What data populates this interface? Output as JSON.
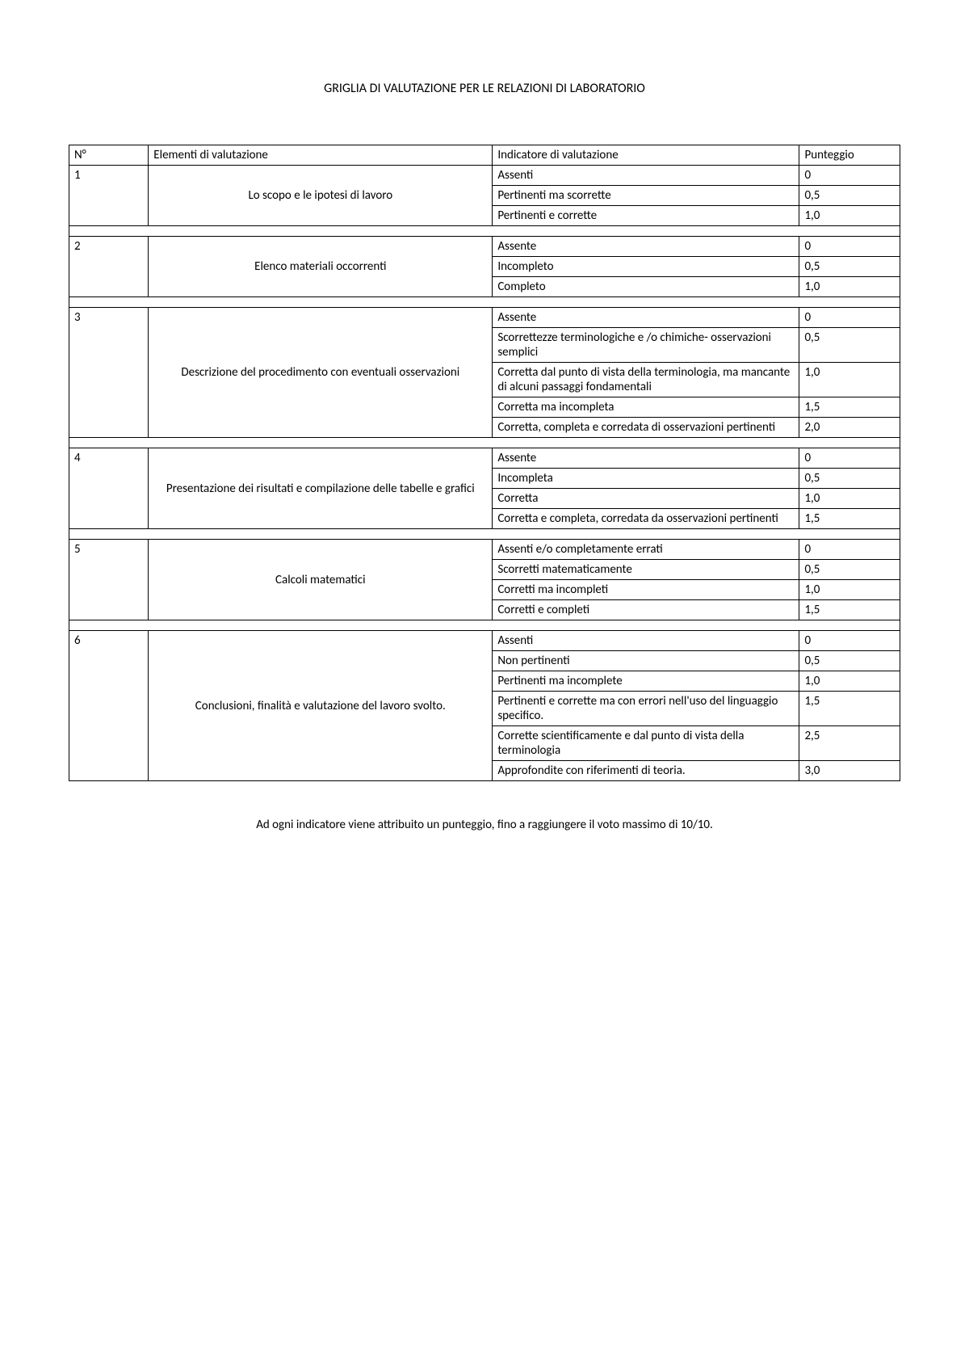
{
  "title": "GRIGLIA DI VALUTAZIONE PER LE RELAZIONI DI LABORATORIO",
  "headers": {
    "num": "N°",
    "elem": "Elementi di valutazione",
    "ind": "Indicatore di valutazione",
    "punt": "Punteggio"
  },
  "sections": [
    {
      "num": "1",
      "elem": "Lo scopo e le ipotesi di lavoro",
      "rows": [
        {
          "ind": "Assenti",
          "punt": "0"
        },
        {
          "ind": "Pertinenti ma scorrette",
          "punt": "0,5"
        },
        {
          "ind": "Pertinenti e corrette",
          "punt": "1,0"
        }
      ]
    },
    {
      "num": "2",
      "elem": "Elenco materiali occorrenti",
      "rows": [
        {
          "ind": "Assente",
          "punt": "0"
        },
        {
          "ind": "Incompleto",
          "punt": "0,5"
        },
        {
          "ind": "Completo",
          "punt": "1,0"
        }
      ]
    },
    {
      "num": "3",
      "elem": "Descrizione del procedimento con eventuali osservazioni",
      "rows": [
        {
          "ind": "Assente",
          "punt": "0"
        },
        {
          "ind": "Scorrettezze terminologiche e /o chimiche- osservazioni semplici",
          "punt": "0,5"
        },
        {
          "ind": "Corretta dal punto di vista della terminologia, ma mancante di alcuni passaggi fondamentali",
          "punt": "1,0"
        },
        {
          "ind": "Corretta ma incompleta",
          "punt": "1,5"
        },
        {
          "ind": "Corretta, completa e corredata di osservazioni pertinenti",
          "punt": "2,0"
        }
      ]
    },
    {
      "num": "4",
      "elem": "Presentazione dei risultati e compilazione delle tabelle e grafici",
      "rows": [
        {
          "ind": "Assente",
          "punt": "0"
        },
        {
          "ind": "Incompleta",
          "punt": "0,5"
        },
        {
          "ind": "Corretta",
          "punt": "1,0"
        },
        {
          "ind": "Corretta e completa, corredata da osservazioni pertinenti",
          "punt": "1,5"
        }
      ]
    },
    {
      "num": "5",
      "elem": "Calcoli matematici",
      "rows": [
        {
          "ind": "Assenti e/o completamente errati",
          "punt": "0"
        },
        {
          "ind": "Scorretti matematicamente",
          "punt": "0,5"
        },
        {
          "ind": "Corretti ma incompleti",
          "punt": "1,0"
        },
        {
          "ind": "Corretti e completi",
          "punt": "1,5"
        }
      ]
    },
    {
      "num": "6",
      "elem": "Conclusioni, finalità e valutazione del lavoro svolto.",
      "rows": [
        {
          "ind": "Assenti",
          "punt": "0"
        },
        {
          "ind": "Non pertinenti",
          "punt": "0,5"
        },
        {
          "ind": "Pertinenti ma incomplete",
          "punt": "1,0"
        },
        {
          "ind": "Pertinenti e corrette ma con errori nell'uso del linguaggio specifico.",
          "punt": "1,5"
        },
        {
          "ind": "Corrette scientificamente e dal punto di vista della terminologia",
          "punt": "2,5"
        },
        {
          "ind": "Approfondite con riferimenti di teoria.",
          "punt": "3,0"
        }
      ]
    }
  ],
  "footer": "Ad ogni indicatore viene attribuito un punteggio, fino a raggiungere il voto massimo di 10/10."
}
